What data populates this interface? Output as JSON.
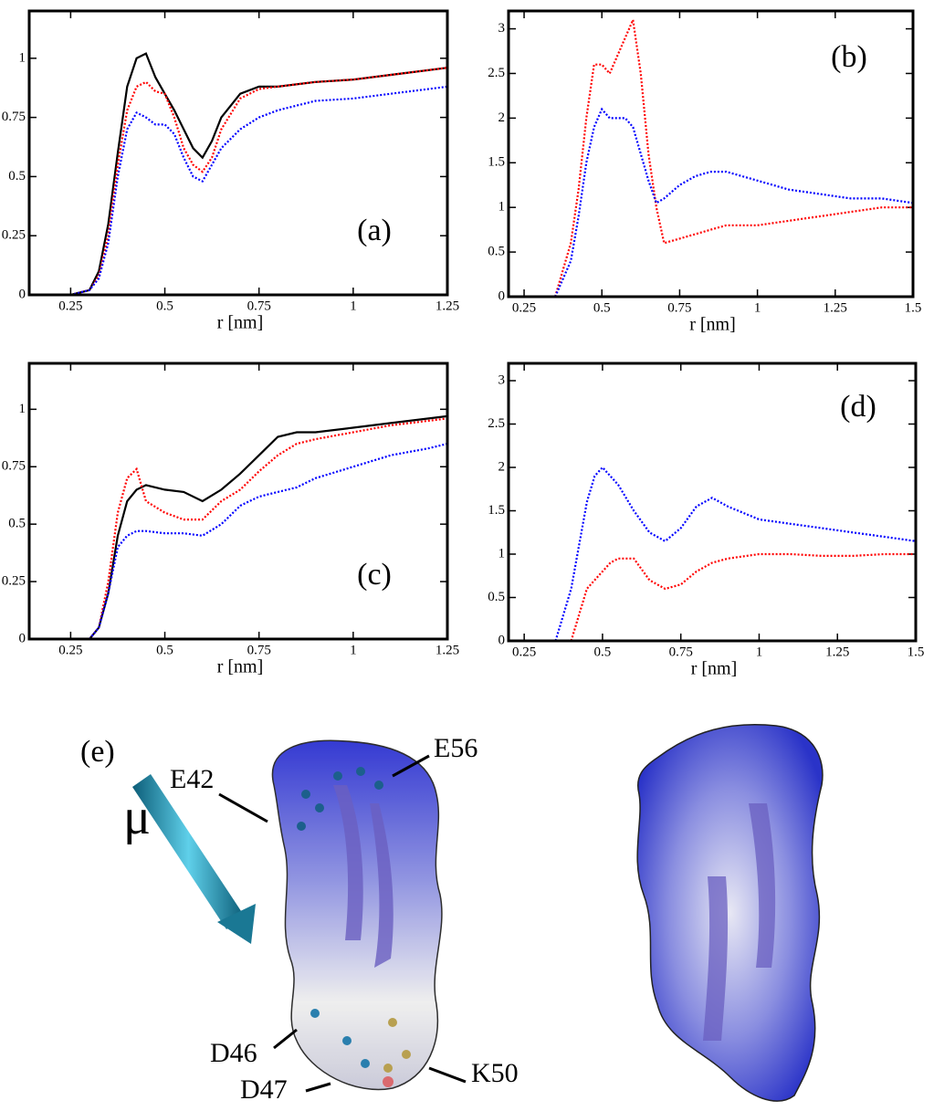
{
  "chart_data": [
    {
      "type": "line",
      "xlabel": "r [nm]",
      "annotation": "(a)",
      "xlim": [
        0.14,
        1.25
      ],
      "ylim": [
        0,
        1.2
      ],
      "xticks": [
        0.25,
        0.5,
        0.75,
        1,
        1.25
      ],
      "yticks": [
        0,
        0.25,
        0.5,
        0.75,
        1
      ],
      "x": [
        0.25,
        0.3,
        0.325,
        0.35,
        0.375,
        0.4,
        0.425,
        0.45,
        0.475,
        0.5,
        0.525,
        0.55,
        0.575,
        0.6,
        0.625,
        0.65,
        0.7,
        0.75,
        0.8,
        0.9,
        1.0,
        1.1,
        1.2,
        1.25
      ],
      "series": [
        {
          "color": "#000000",
          "style": "solid",
          "values": [
            0,
            0.02,
            0.1,
            0.3,
            0.6,
            0.88,
            1.0,
            1.02,
            0.92,
            0.85,
            0.78,
            0.7,
            0.62,
            0.58,
            0.65,
            0.75,
            0.85,
            0.88,
            0.88,
            0.9,
            0.91,
            0.93,
            0.95,
            0.96
          ]
        },
        {
          "color": "#ff0000",
          "style": "dotted",
          "values": [
            0,
            0.02,
            0.08,
            0.25,
            0.55,
            0.78,
            0.88,
            0.9,
            0.86,
            0.85,
            0.75,
            0.62,
            0.55,
            0.52,
            0.58,
            0.7,
            0.83,
            0.87,
            0.88,
            0.9,
            0.91,
            0.93,
            0.95,
            0.96
          ]
        },
        {
          "color": "#0000ff",
          "style": "dotted",
          "values": [
            0,
            0.02,
            0.07,
            0.22,
            0.5,
            0.7,
            0.77,
            0.75,
            0.72,
            0.72,
            0.68,
            0.58,
            0.5,
            0.48,
            0.55,
            0.62,
            0.7,
            0.75,
            0.78,
            0.82,
            0.83,
            0.85,
            0.87,
            0.88
          ]
        }
      ]
    },
    {
      "type": "line",
      "xlabel": "r [nm]",
      "annotation": "(b)",
      "xlim": [
        0.2,
        1.5
      ],
      "ylim": [
        0,
        3.2
      ],
      "xticks": [
        0.25,
        0.5,
        0.75,
        1,
        1.25,
        1.5
      ],
      "yticks": [
        0,
        0.5,
        1,
        1.5,
        2,
        2.5,
        3
      ],
      "x": [
        0.35,
        0.4,
        0.425,
        0.45,
        0.475,
        0.5,
        0.525,
        0.55,
        0.575,
        0.6,
        0.625,
        0.65,
        0.675,
        0.7,
        0.75,
        0.8,
        0.85,
        0.9,
        1.0,
        1.1,
        1.2,
        1.3,
        1.4,
        1.5
      ],
      "series": [
        {
          "color": "#ff0000",
          "style": "dotted",
          "values": [
            0,
            0.6,
            1.2,
            2.0,
            2.6,
            2.6,
            2.5,
            2.7,
            2.9,
            3.1,
            2.5,
            1.6,
            1.0,
            0.6,
            0.65,
            0.7,
            0.75,
            0.8,
            0.8,
            0.85,
            0.9,
            0.95,
            1.0,
            1.0
          ]
        },
        {
          "color": "#0000ff",
          "style": "dotted",
          "values": [
            0,
            0.4,
            0.9,
            1.5,
            1.9,
            2.1,
            2.0,
            2.0,
            2.0,
            1.9,
            1.6,
            1.3,
            1.05,
            1.1,
            1.25,
            1.35,
            1.4,
            1.4,
            1.3,
            1.2,
            1.15,
            1.1,
            1.1,
            1.05
          ]
        }
      ]
    },
    {
      "type": "line",
      "xlabel": "r [nm]",
      "annotation": "(c)",
      "xlim": [
        0.14,
        1.25
      ],
      "ylim": [
        0,
        1.2
      ],
      "xticks": [
        0.25,
        0.5,
        0.75,
        1,
        1.25
      ],
      "yticks": [
        0,
        0.25,
        0.5,
        0.75,
        1
      ],
      "x": [
        0.3,
        0.325,
        0.35,
        0.375,
        0.4,
        0.425,
        0.45,
        0.5,
        0.55,
        0.6,
        0.65,
        0.7,
        0.75,
        0.8,
        0.85,
        0.9,
        1.0,
        1.1,
        1.2,
        1.25
      ],
      "series": [
        {
          "color": "#000000",
          "style": "solid",
          "values": [
            0,
            0.05,
            0.2,
            0.45,
            0.6,
            0.65,
            0.67,
            0.65,
            0.64,
            0.6,
            0.65,
            0.72,
            0.8,
            0.88,
            0.9,
            0.9,
            0.92,
            0.94,
            0.96,
            0.97
          ]
        },
        {
          "color": "#ff0000",
          "style": "dotted",
          "values": [
            0,
            0.05,
            0.25,
            0.55,
            0.7,
            0.74,
            0.6,
            0.55,
            0.52,
            0.52,
            0.6,
            0.65,
            0.73,
            0.8,
            0.85,
            0.87,
            0.9,
            0.93,
            0.95,
            0.96
          ]
        },
        {
          "color": "#0000ff",
          "style": "dotted",
          "values": [
            0,
            0.05,
            0.2,
            0.4,
            0.45,
            0.47,
            0.47,
            0.46,
            0.46,
            0.45,
            0.5,
            0.58,
            0.62,
            0.64,
            0.66,
            0.7,
            0.75,
            0.8,
            0.83,
            0.85
          ]
        }
      ]
    },
    {
      "type": "line",
      "xlabel": "r [nm]",
      "annotation": "(d)",
      "xlim": [
        0.2,
        1.5
      ],
      "ylim": [
        0,
        3.2
      ],
      "xticks": [
        0.25,
        0.5,
        0.75,
        1,
        1.25,
        1.5
      ],
      "yticks": [
        0,
        0.5,
        1,
        1.5,
        2,
        2.5,
        3
      ],
      "x": [
        0.35,
        0.4,
        0.45,
        0.475,
        0.5,
        0.525,
        0.55,
        0.6,
        0.65,
        0.7,
        0.75,
        0.8,
        0.85,
        0.9,
        1.0,
        1.1,
        1.2,
        1.3,
        1.4,
        1.5
      ],
      "series": [
        {
          "color": "#0000ff",
          "style": "dotted",
          "values": [
            0,
            0.6,
            1.6,
            1.9,
            2.0,
            1.9,
            1.8,
            1.5,
            1.25,
            1.15,
            1.3,
            1.55,
            1.65,
            1.55,
            1.4,
            1.35,
            1.3,
            1.25,
            1.2,
            1.15
          ]
        },
        {
          "color": "#ff0000",
          "style": "dotted",
          "values": [
            null,
            0,
            0.6,
            0.7,
            0.8,
            0.9,
            0.95,
            0.95,
            0.7,
            0.6,
            0.65,
            0.8,
            0.9,
            0.95,
            1.0,
            1.0,
            0.98,
            0.98,
            1.0,
            1.0
          ]
        }
      ]
    }
  ],
  "panel_e": {
    "label": "(e)",
    "dipole": "μ",
    "residues": [
      "E42",
      "E56",
      "D46",
      "D47",
      "K50"
    ]
  }
}
